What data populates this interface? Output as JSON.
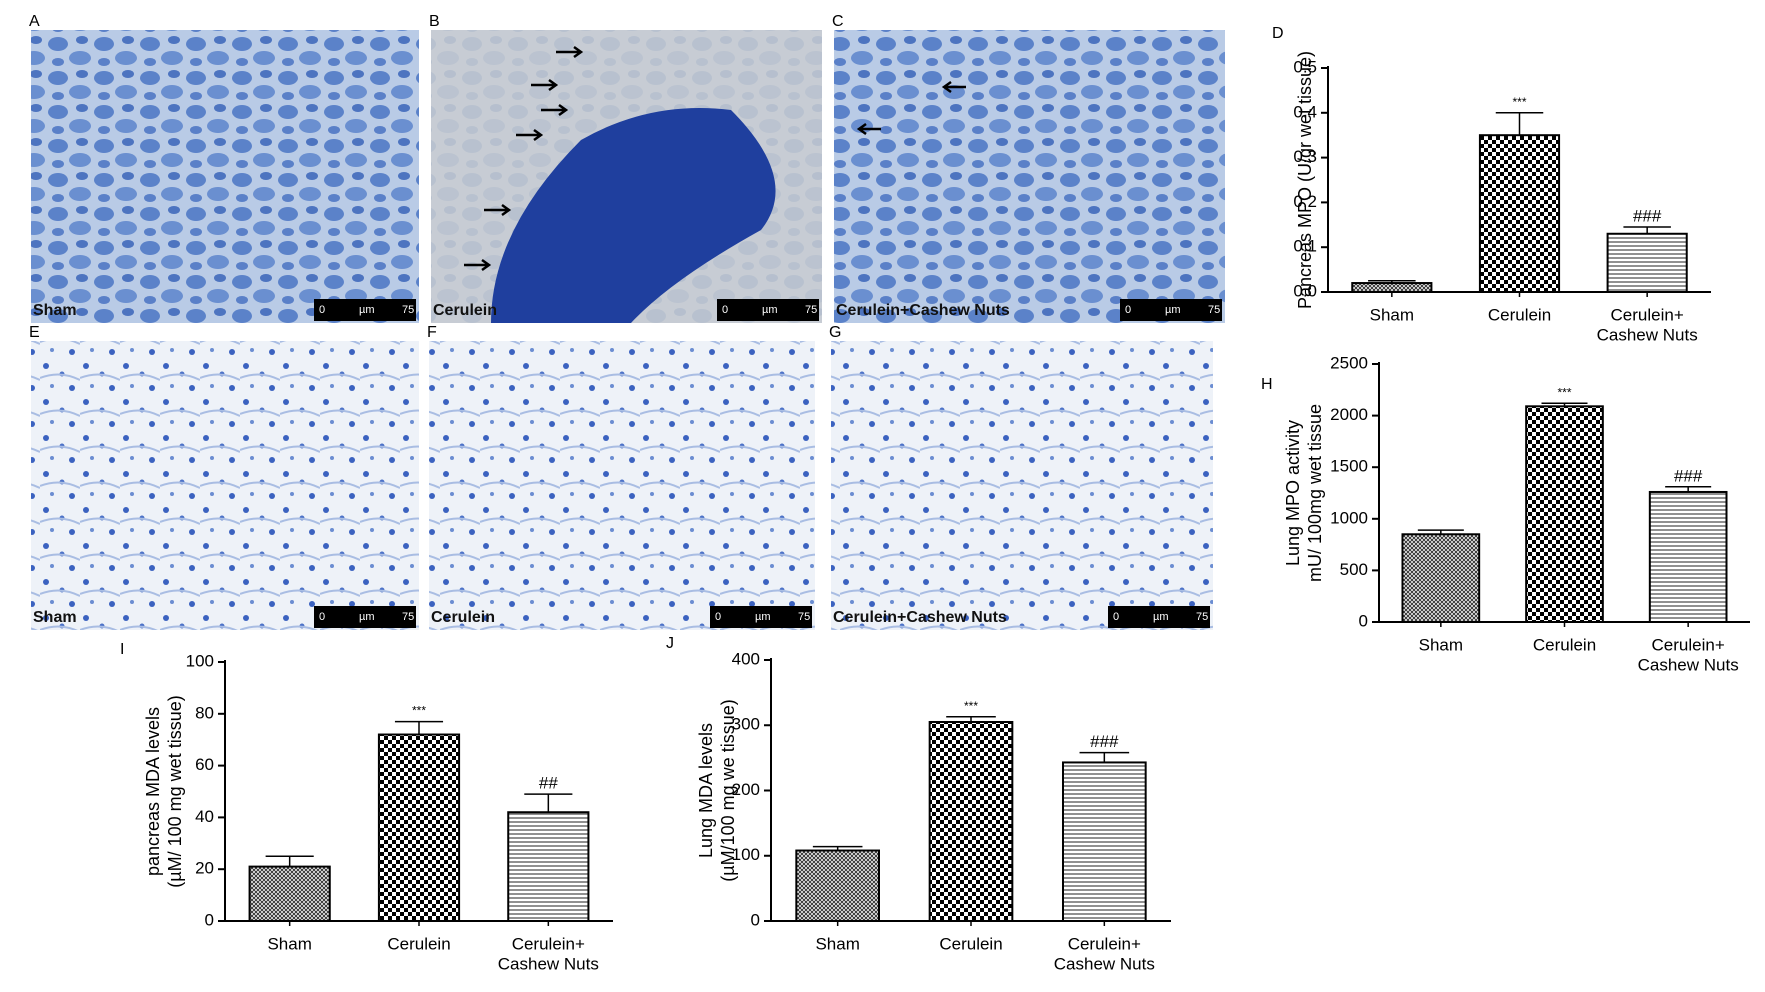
{
  "panels": [
    {
      "letter": "A",
      "caption": "Sham",
      "scale_bar": {
        "start": "0",
        "unit": "µm",
        "end": "75"
      }
    },
    {
      "letter": "B",
      "caption": "Cerulein",
      "scale_bar": {
        "start": "0",
        "unit": "µm",
        "end": "75"
      }
    },
    {
      "letter": "C",
      "caption": "Cerulein+Cashew Nuts",
      "scale_bar": {
        "start": "0",
        "unit": "µm",
        "end": "75"
      }
    },
    {
      "letter": "E",
      "caption": "Sham",
      "scale_bar": {
        "start": "0",
        "unit": "µm",
        "end": "75"
      }
    },
    {
      "letter": "F",
      "caption": "Cerulein",
      "scale_bar": {
        "start": "0",
        "unit": "µm",
        "end": "75"
      }
    },
    {
      "letter": "G",
      "caption": "Cerulein+Cashew Nuts",
      "scale_bar": {
        "start": "0",
        "unit": "µm",
        "end": "75"
      }
    }
  ],
  "chart_data": [
    {
      "type": "bar",
      "panel": "D",
      "ylabel": [
        "Pancreas MPO (U/gr wet tissue)"
      ],
      "categories": [
        [
          "Sham"
        ],
        [
          "Cerulein"
        ],
        [
          "Cerulein+",
          "Cashew Nuts"
        ]
      ],
      "values": [
        0.02,
        0.35,
        0.13
      ],
      "errors": [
        0.005,
        0.05,
        0.015
      ],
      "annotations": [
        null,
        "***",
        "###"
      ],
      "ylim": [
        0,
        0.5
      ],
      "yticks": [
        {
          "value": 0,
          "label": "0.0"
        },
        0.1,
        0.2,
        0.3,
        0.4,
        0.5
      ],
      "color": "#000000"
    },
    {
      "type": "bar",
      "panel": "H",
      "ylabel": [
        "Lung MPO activity",
        "mU/ 100mg  wet tissue"
      ],
      "categories": [
        [
          "Sham"
        ],
        [
          "Cerulein"
        ],
        [
          "Cerulein+",
          "Cashew Nuts"
        ]
      ],
      "values": [
        850,
        2090,
        1260
      ],
      "errors": [
        40,
        30,
        50
      ],
      "annotations": [
        null,
        "***",
        "###"
      ],
      "ylim": [
        0,
        2500
      ],
      "yticks": [
        0,
        500,
        1000,
        1500,
        2000,
        2500
      ],
      "color": "#000000"
    },
    {
      "type": "bar",
      "panel": "I",
      "ylabel": [
        "pancreas MDA levels",
        "(µM/ 100 mg wet tissue)"
      ],
      "categories": [
        [
          "Sham"
        ],
        [
          "Cerulein"
        ],
        [
          "Cerulein+",
          "Cashew Nuts"
        ]
      ],
      "values": [
        21,
        72,
        42
      ],
      "errors": [
        4,
        5,
        7
      ],
      "annotations": [
        null,
        "***",
        "##"
      ],
      "ylim": [
        0,
        100
      ],
      "yticks": [
        0,
        20,
        40,
        60,
        80,
        100
      ],
      "color": "#000000"
    },
    {
      "type": "bar",
      "panel": "J",
      "ylabel": [
        "Lung MDA levels",
        "(µM/100 mg we tissue)"
      ],
      "categories": [
        [
          "Sham"
        ],
        [
          "Cerulein"
        ],
        [
          "Cerulein+",
          "Cashew Nuts"
        ]
      ],
      "values": [
        108,
        305,
        243
      ],
      "errors": [
        6,
        8,
        15
      ],
      "annotations": [
        null,
        "***",
        "###"
      ],
      "ylim": [
        0,
        400
      ],
      "yticks": [
        0,
        100,
        200,
        300,
        400
      ],
      "color": "#000000"
    }
  ]
}
